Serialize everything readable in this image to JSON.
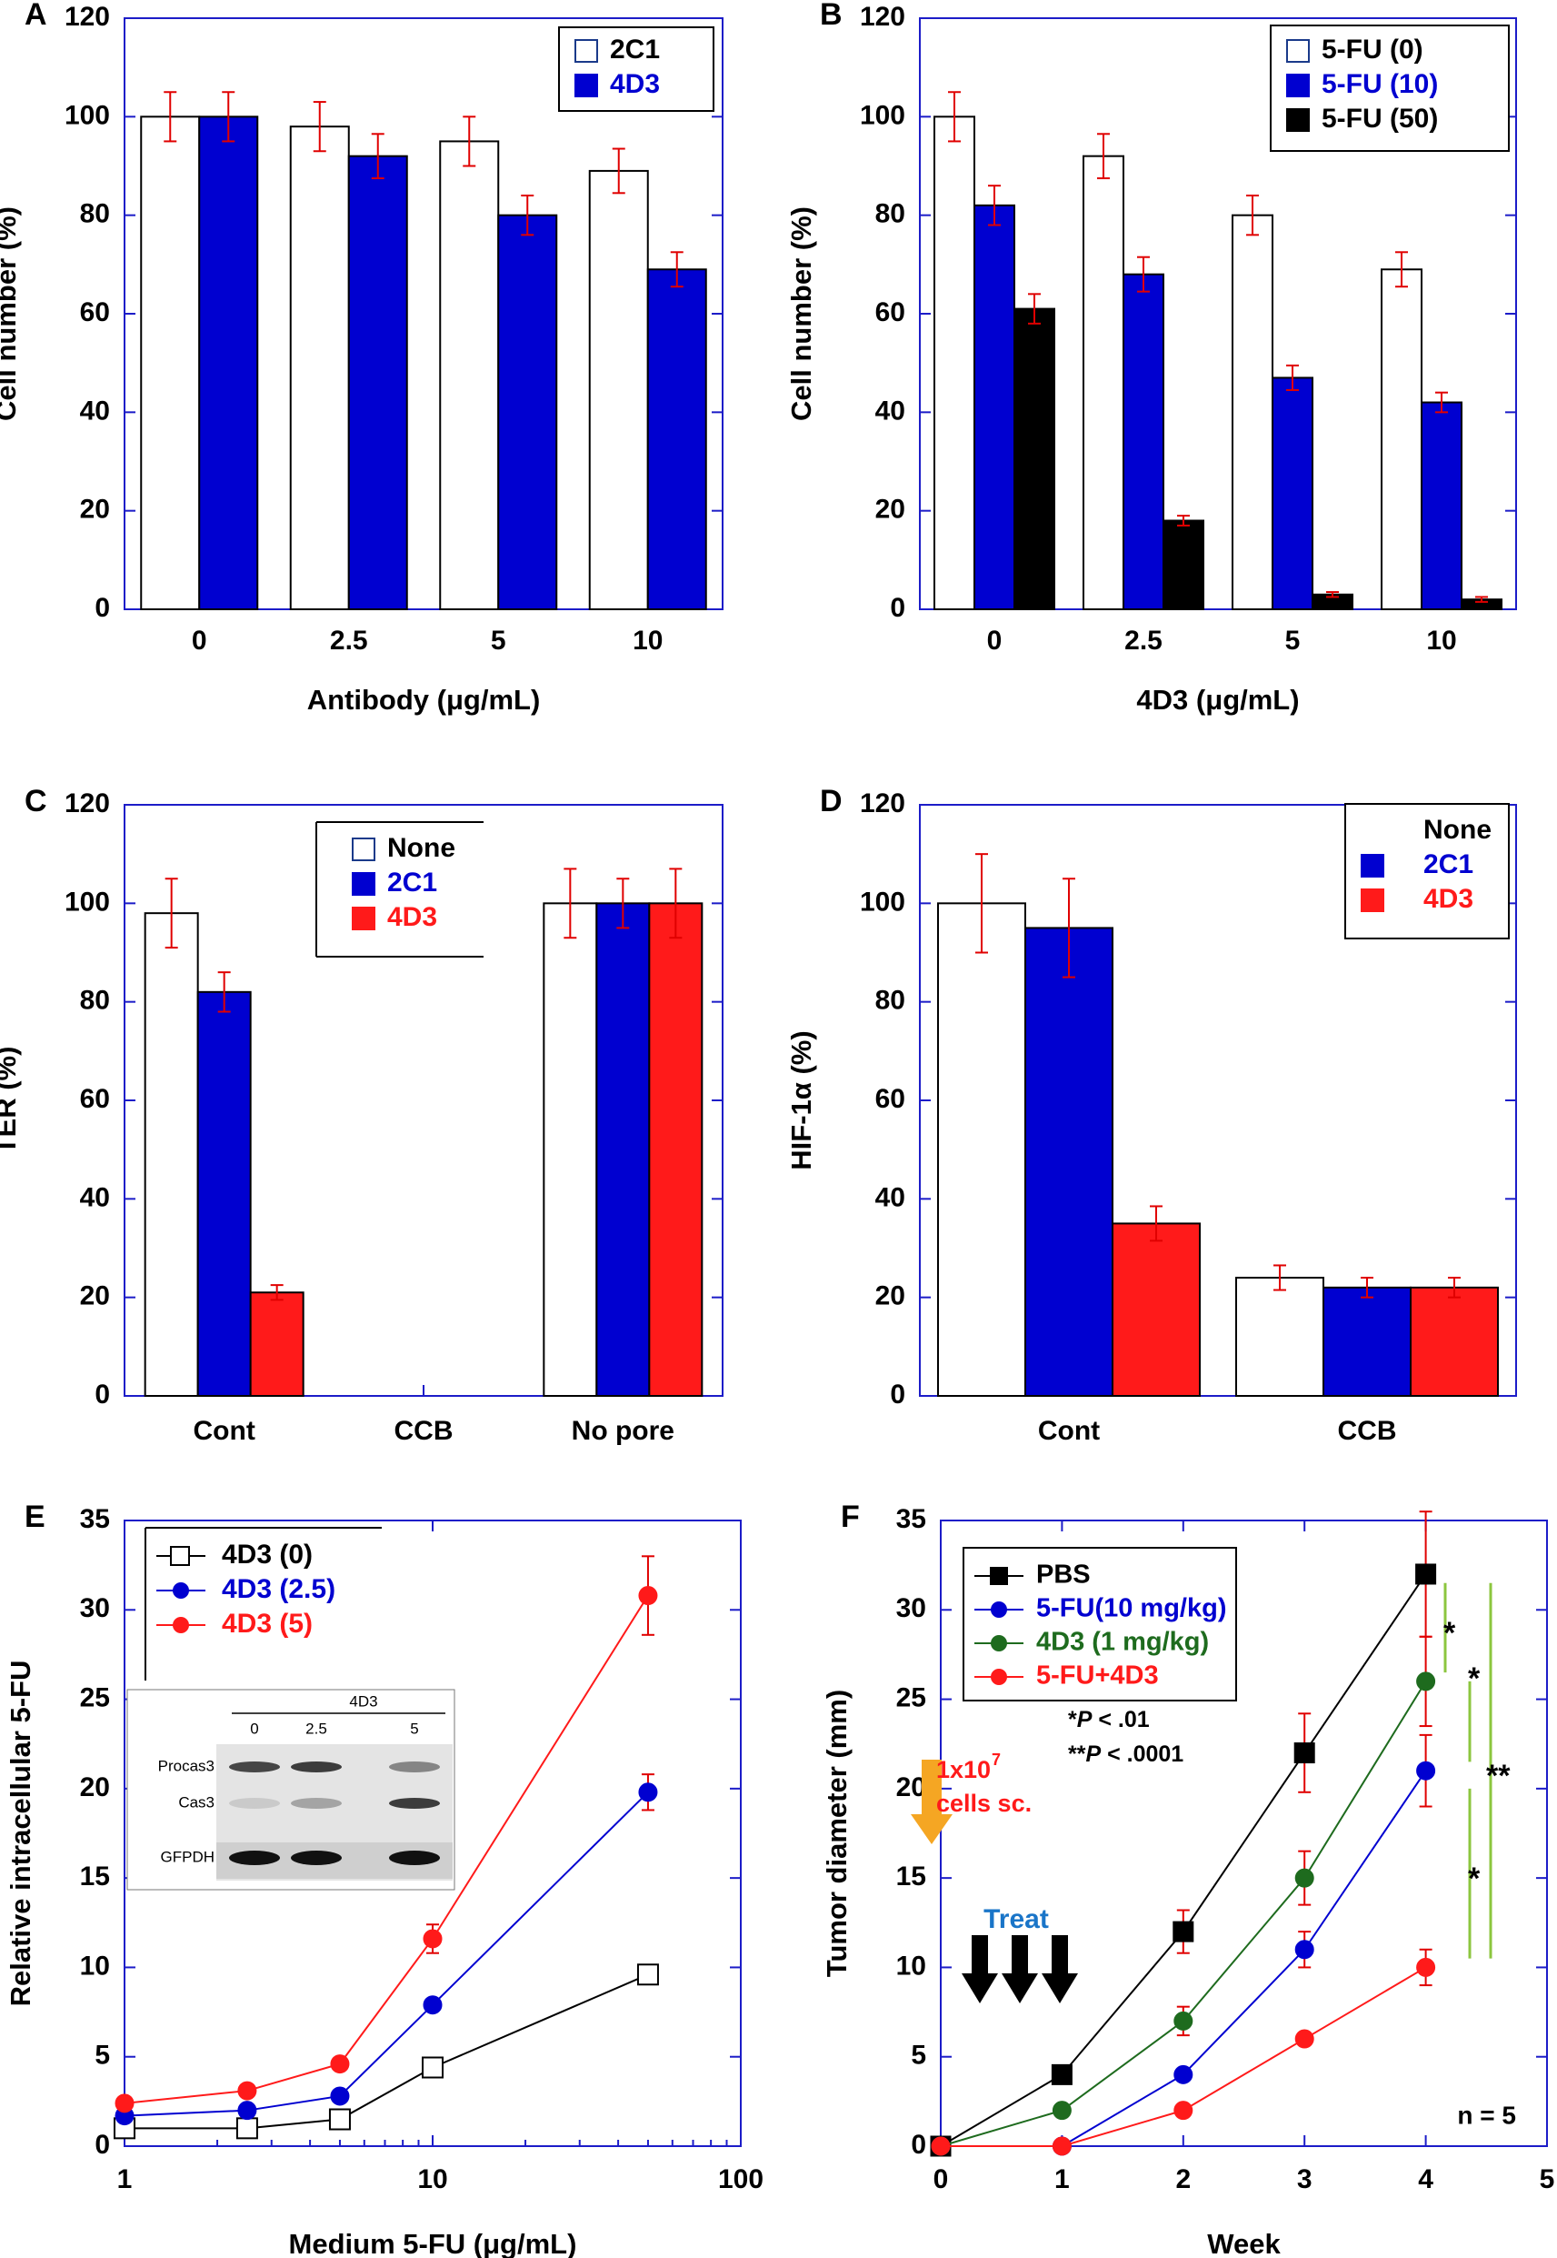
{
  "colors": {
    "axis": "#1c1cc8",
    "blue": "#0000d0",
    "red": "#ff1a1a",
    "black": "#000000",
    "white": "#ffffff",
    "green": "#1e6b1e",
    "light_blue_text": "#1a75c8",
    "orange": "#f5a623",
    "lime": "#8cc63f",
    "err_red": "#e00000"
  },
  "chart_data": [
    {
      "id": "A",
      "panel_label": "A",
      "type": "bar",
      "xlabel": "Antibody (μg/mL)",
      "ylabel": "Cell number (%)",
      "ylim": [
        0,
        120
      ],
      "yticks": [
        0,
        20,
        40,
        60,
        80,
        100,
        120
      ],
      "categories": [
        "0",
        "2.5",
        "5",
        "10"
      ],
      "legend_position": "top-right",
      "series": [
        {
          "name": "2C1",
          "fill": "white",
          "label_color": "black",
          "values": [
            100,
            98,
            95,
            89
          ],
          "errors": [
            5,
            5,
            5,
            4.5
          ]
        },
        {
          "name": "4D3",
          "fill": "blue",
          "label_color": "blue",
          "values": [
            100,
            92,
            80,
            69
          ],
          "errors": [
            5,
            4.5,
            4,
            3.5
          ]
        }
      ]
    },
    {
      "id": "B",
      "panel_label": "B",
      "type": "bar",
      "xlabel": "4D3 (μg/mL)",
      "ylabel": "Cell number (%)",
      "ylim": [
        0,
        120
      ],
      "yticks": [
        0,
        20,
        40,
        60,
        80,
        100,
        120
      ],
      "categories": [
        "0",
        "2.5",
        "5",
        "10"
      ],
      "legend_position": "top-right",
      "series": [
        {
          "name": "5-FU (0)",
          "fill": "white",
          "label_color": "black",
          "values": [
            100,
            92,
            80,
            69
          ],
          "errors": [
            5,
            4.5,
            4,
            3.5
          ]
        },
        {
          "name": "5-FU (10)",
          "fill": "blue",
          "label_color": "blue",
          "values": [
            82,
            68,
            47,
            42
          ],
          "errors": [
            4,
            3.5,
            2.5,
            2
          ]
        },
        {
          "name": "5-FU (50)",
          "fill": "black",
          "label_color": "black",
          "values": [
            61,
            18,
            3,
            2
          ],
          "errors": [
            3,
            1,
            0.5,
            0.5
          ]
        }
      ]
    },
    {
      "id": "C",
      "panel_label": "C",
      "type": "bar",
      "xlabel": "",
      "ylabel": "TER (%)",
      "ylim": [
        0,
        120
      ],
      "yticks": [
        0,
        20,
        40,
        60,
        80,
        100,
        120
      ],
      "categories": [
        "Cont",
        "CCB",
        "No pore"
      ],
      "legend_position": "top-center",
      "series": [
        {
          "name": "None",
          "fill": "white",
          "label_color": "black",
          "values": [
            98,
            0,
            100
          ],
          "errors": [
            7,
            0,
            7
          ]
        },
        {
          "name": "2C1",
          "fill": "blue",
          "label_color": "blue",
          "values": [
            82,
            0,
            100
          ],
          "errors": [
            4,
            0,
            5
          ]
        },
        {
          "name": "4D3",
          "fill": "red",
          "label_color": "red",
          "values": [
            21,
            0,
            100
          ],
          "errors": [
            1.5,
            0,
            7
          ]
        }
      ]
    },
    {
      "id": "D",
      "panel_label": "D",
      "type": "bar",
      "xlabel": "",
      "ylabel": "HIF-1α (%)",
      "ylim": [
        0,
        120
      ],
      "yticks": [
        0,
        20,
        40,
        60,
        80,
        100,
        120
      ],
      "categories": [
        "Cont",
        "CCB"
      ],
      "legend_position": "top-right",
      "series": [
        {
          "name": "None",
          "fill": "white",
          "label_color": "black",
          "values": [
            100,
            24
          ],
          "errors": [
            10,
            2.5
          ]
        },
        {
          "name": "2C1",
          "fill": "blue",
          "label_color": "blue",
          "values": [
            95,
            22
          ],
          "errors": [
            10,
            2
          ]
        },
        {
          "name": "4D3",
          "fill": "red",
          "label_color": "red",
          "values": [
            35,
            22
          ],
          "errors": [
            3.5,
            2
          ]
        }
      ]
    },
    {
      "id": "E",
      "panel_label": "E",
      "type": "line",
      "x_scale": "log",
      "xlabel": "Medium 5-FU (μg/mL)",
      "ylabel": "Relative intracellular 5-FU",
      "xlim": [
        1,
        100
      ],
      "xticks": [
        1,
        10,
        100
      ],
      "ylim": [
        0,
        35
      ],
      "yticks": [
        0,
        5,
        10,
        15,
        20,
        25,
        30,
        35
      ],
      "x": [
        1,
        2.5,
        5,
        10,
        50
      ],
      "legend_position": "top-left",
      "series": [
        {
          "name": "4D3 (0)",
          "color": "black",
          "marker": "open-square",
          "values": [
            1,
            1,
            1.5,
            4.4,
            9.6
          ],
          "errors": [
            0,
            0,
            0,
            0,
            0
          ]
        },
        {
          "name": "4D3 (2.5)",
          "color": "blue",
          "marker": "circle",
          "values": [
            1.7,
            2,
            2.8,
            7.9,
            19.8
          ],
          "errors": [
            0,
            0,
            0,
            0,
            1
          ]
        },
        {
          "name": "4D3 (5)",
          "color": "red",
          "marker": "circle",
          "values": [
            2.4,
            3.1,
            4.6,
            11.6,
            30.8
          ],
          "errors": [
            0,
            0,
            0,
            0.8,
            2.2
          ]
        }
      ],
      "inset": {
        "header": "4D3",
        "lanes": [
          "0",
          "2.5",
          "5"
        ],
        "rows": [
          "Procas3",
          "Cas3",
          "GFPDH"
        ]
      }
    },
    {
      "id": "F",
      "panel_label": "F",
      "type": "line",
      "xlabel": "Week",
      "ylabel": "Tumor diameter (mm)",
      "xlim": [
        0,
        5
      ],
      "xticks": [
        0,
        1,
        2,
        3,
        4,
        5
      ],
      "ylim": [
        0,
        35
      ],
      "yticks": [
        0,
        5,
        10,
        15,
        20,
        25,
        30,
        35
      ],
      "legend_position": "top-left",
      "series": [
        {
          "name": "PBS",
          "color": "black",
          "label_color": "black",
          "marker": "square",
          "x": [
            0,
            1,
            2,
            3,
            4
          ],
          "values": [
            0,
            4,
            12,
            22,
            32
          ],
          "errors": [
            0,
            0,
            1.2,
            2.2,
            3.5
          ]
        },
        {
          "name": "5-FU(10 mg/kg)",
          "color": "blue",
          "label_color": "blue",
          "marker": "circle",
          "x": [
            0,
            1,
            2,
            3,
            4
          ],
          "values": [
            0,
            0,
            4,
            11,
            21
          ],
          "errors": [
            0,
            0,
            0,
            1,
            2
          ]
        },
        {
          "name": "4D3 (1 mg/kg)",
          "color": "green",
          "label_color": "green",
          "marker": "circle",
          "x": [
            0,
            1,
            2,
            3,
            4
          ],
          "values": [
            0,
            2,
            7,
            15,
            26
          ],
          "errors": [
            0,
            0,
            0.8,
            1.5,
            2.5
          ]
        },
        {
          "name": "5-FU+4D3",
          "color": "red",
          "label_color": "red",
          "marker": "circle",
          "x": [
            0,
            1,
            2,
            3,
            4
          ],
          "values": [
            0,
            0,
            2,
            6,
            10
          ],
          "errors": [
            0,
            0,
            0,
            0,
            1
          ]
        }
      ],
      "annotations": {
        "p1_prefix": "*",
        "p1_italic": "P",
        "p1_rest": " < .01",
        "p2_prefix": "**",
        "p2_italic": "P",
        "p2_rest": " < .0001",
        "cells_line1": "1x10",
        "cells_sup": "7",
        "cells_line2": "cells sc.",
        "treat": "Treat",
        "n": "n = 5",
        "star1": "*",
        "star2": "*",
        "star3": "**",
        "star4": "*"
      }
    }
  ]
}
